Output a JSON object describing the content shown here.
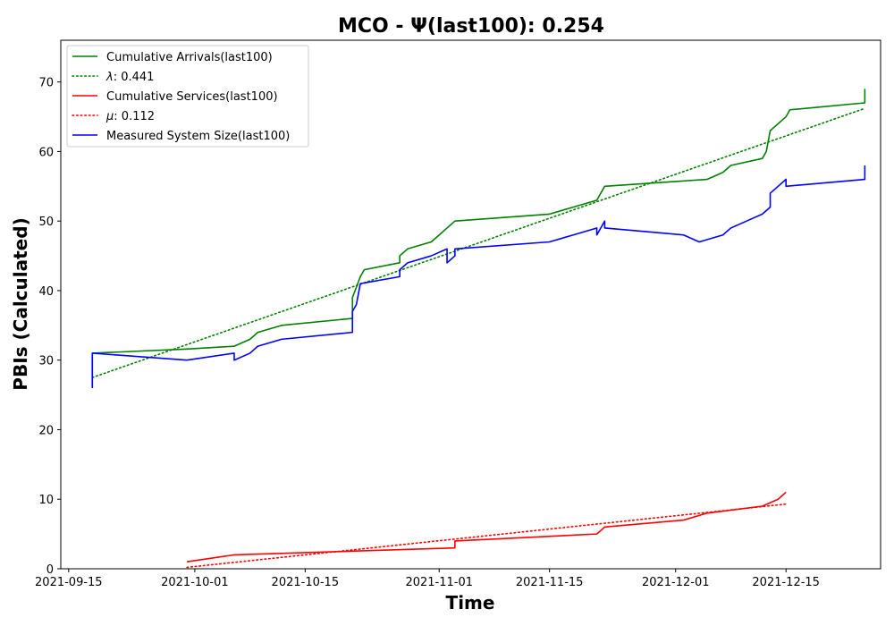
{
  "chart_data": {
    "type": "line",
    "title": "MCO -  Ψ(last100): 0.254",
    "xlabel": "Time",
    "ylabel": "PBIs (Calculated)",
    "xlim": [
      "2021-09-14",
      "2021-12-27"
    ],
    "ylim": [
      0,
      76
    ],
    "x_ticks": [
      "2021-09-15",
      "2021-10-01",
      "2021-10-15",
      "2021-11-01",
      "2021-11-15",
      "2021-12-01",
      "2021-12-15"
    ],
    "y_ticks": [
      0,
      10,
      20,
      30,
      40,
      50,
      60,
      70
    ],
    "grid": false,
    "legend_position": "upper-left",
    "series": [
      {
        "name": "Cumulative Arrivals(last100)",
        "color": "#008000",
        "style": "solid",
        "points": [
          [
            "2021-09-18",
            26
          ],
          [
            "2021-09-18",
            31
          ],
          [
            "2021-09-30",
            31.6
          ],
          [
            "2021-10-06",
            32
          ],
          [
            "2021-10-08",
            33
          ],
          [
            "2021-10-09",
            34
          ],
          [
            "2021-10-12",
            35
          ],
          [
            "2021-10-21",
            36
          ],
          [
            "2021-10-21",
            39
          ],
          [
            "2021-10-22",
            42
          ],
          [
            "2021-10-22.5",
            43
          ],
          [
            "2021-10-27",
            44
          ],
          [
            "2021-10-27",
            45
          ],
          [
            "2021-10-28",
            46
          ],
          [
            "2021-10-31",
            47
          ],
          [
            "2021-11-01",
            48
          ],
          [
            "2021-11-02",
            49
          ],
          [
            "2021-11-03",
            50
          ],
          [
            "2021-11-15",
            51
          ],
          [
            "2021-11-21",
            53
          ],
          [
            "2021-11-21.5",
            54
          ],
          [
            "2021-11-22",
            55
          ],
          [
            "2021-12-05",
            56
          ],
          [
            "2021-12-07",
            57
          ],
          [
            "2021-12-08",
            58
          ],
          [
            "2021-12-12",
            59
          ],
          [
            "2021-12-12.5",
            60
          ],
          [
            "2021-12-13",
            63
          ],
          [
            "2021-12-14",
            64
          ],
          [
            "2021-12-15",
            65
          ],
          [
            "2021-12-15.5",
            66
          ],
          [
            "2021-12-25",
            67
          ],
          [
            "2021-12-25",
            69
          ]
        ]
      },
      {
        "name": "λ: 0.441",
        "label_symbol": "λ",
        "label_value": ": 0.441",
        "color": "#008000",
        "style": "dotted",
        "points": [
          [
            "2021-09-18",
            27.5
          ],
          [
            "2021-12-25",
            66.2
          ]
        ]
      },
      {
        "name": "Cumulative Services(last100)",
        "color": "#ff0000",
        "style": "solid",
        "points": [
          [
            "2021-09-30",
            1
          ],
          [
            "2021-10-03",
            1.5
          ],
          [
            "2021-10-06",
            2
          ],
          [
            "2021-11-03",
            3
          ],
          [
            "2021-11-03",
            4
          ],
          [
            "2021-11-21",
            5
          ],
          [
            "2021-11-22",
            6
          ],
          [
            "2021-12-02",
            7
          ],
          [
            "2021-12-05",
            8
          ],
          [
            "2021-12-12",
            9
          ],
          [
            "2021-12-14",
            10
          ],
          [
            "2021-12-15",
            11
          ]
        ]
      },
      {
        "name": "μ: 0.112",
        "label_symbol": "μ",
        "label_value": ": 0.112",
        "color": "#ff0000",
        "style": "dotted",
        "points": [
          [
            "2021-09-30",
            0.2
          ],
          [
            "2021-12-15",
            9.3
          ]
        ]
      },
      {
        "name": "Measured System Size(last100)",
        "color": "#0000ff",
        "style": "solid",
        "points": [
          [
            "2021-09-18",
            26
          ],
          [
            "2021-09-18",
            31
          ],
          [
            "2021-09-30",
            30
          ],
          [
            "2021-10-06",
            31
          ],
          [
            "2021-10-06",
            30
          ],
          [
            "2021-10-08",
            31
          ],
          [
            "2021-10-09",
            32
          ],
          [
            "2021-10-12",
            33
          ],
          [
            "2021-10-21",
            34
          ],
          [
            "2021-10-21",
            37
          ],
          [
            "2021-10-21.5",
            38
          ],
          [
            "2021-10-22",
            41
          ],
          [
            "2021-10-27",
            42
          ],
          [
            "2021-10-27",
            43
          ],
          [
            "2021-10-28",
            44
          ],
          [
            "2021-10-31",
            45
          ],
          [
            "2021-11-02",
            46
          ],
          [
            "2021-11-02",
            44
          ],
          [
            "2021-11-03",
            45
          ],
          [
            "2021-11-03",
            46
          ],
          [
            "2021-11-15",
            47
          ],
          [
            "2021-11-21",
            49
          ],
          [
            "2021-11-21",
            48
          ],
          [
            "2021-11-22",
            50
          ],
          [
            "2021-11-22",
            49
          ],
          [
            "2021-12-02",
            48
          ],
          [
            "2021-12-04",
            47
          ],
          [
            "2021-12-07",
            48
          ],
          [
            "2021-12-08",
            49
          ],
          [
            "2021-12-10",
            50
          ],
          [
            "2021-12-12",
            51
          ],
          [
            "2021-12-13",
            52
          ],
          [
            "2021-12-13",
            54
          ],
          [
            "2021-12-14",
            55
          ],
          [
            "2021-12-15",
            56
          ],
          [
            "2021-12-15",
            55
          ],
          [
            "2021-12-25",
            56
          ],
          [
            "2021-12-25",
            58
          ]
        ]
      }
    ]
  }
}
